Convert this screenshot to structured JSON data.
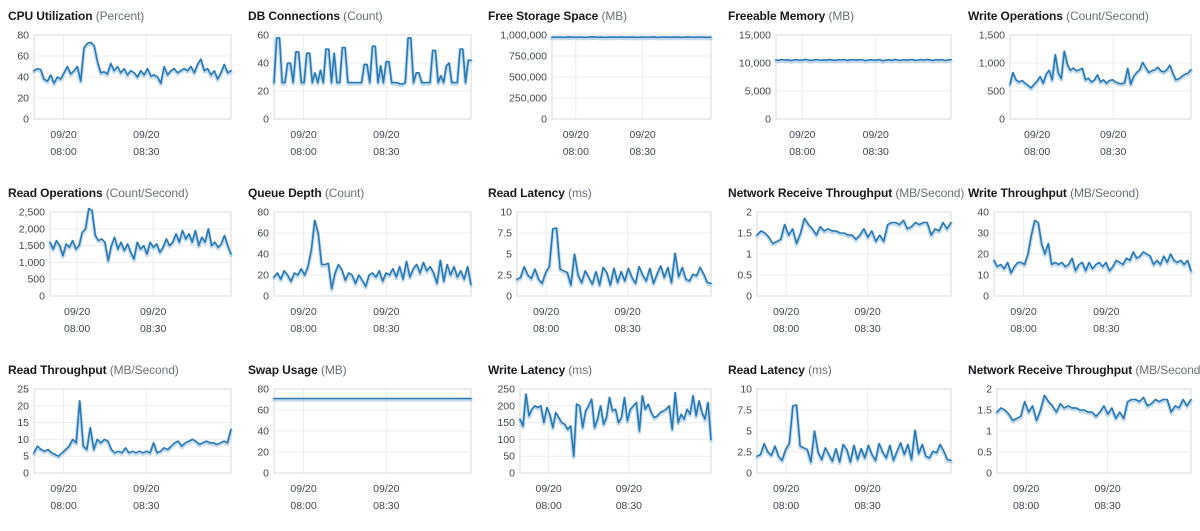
{
  "colors": {
    "line": "#2878b5",
    "line_glow": "#8fbcdf",
    "grid": "#ececec",
    "plot_border": "#d9d9d9",
    "title_text": "#16191f",
    "unit_text": "#687078",
    "tick_text": "#3f4750",
    "background": "#ffffff"
  },
  "x_axis": {
    "tick_labels": [
      {
        "date": "09/20",
        "time": "08:00"
      },
      {
        "date": "09/20",
        "time": "08:30"
      }
    ],
    "positions": [
      0.15,
      0.57
    ]
  },
  "chart_data": [
    {
      "type": "line",
      "title": "CPU Utilization",
      "unit": "(Percent)",
      "y_ticks": [
        "0",
        "20",
        "40",
        "60",
        "80"
      ],
      "ylim": [
        0,
        80
      ],
      "values": [
        46,
        48,
        47,
        38,
        36,
        42,
        34,
        40,
        38,
        44,
        50,
        43,
        46,
        50,
        36,
        68,
        72,
        73,
        70,
        55,
        44,
        45,
        43,
        53,
        46,
        50,
        44,
        48,
        42,
        46,
        44,
        40,
        46,
        42,
        48,
        41,
        42,
        40,
        34,
        50,
        42,
        46,
        48,
        44,
        46,
        48,
        46,
        50,
        44,
        52,
        57,
        46,
        48,
        42,
        46,
        38,
        44,
        52,
        44,
        46
      ]
    },
    {
      "type": "line",
      "title": "DB Connections",
      "unit": "(Count)",
      "y_ticks": [
        "0",
        "20",
        "40",
        "60"
      ],
      "ylim": [
        0,
        60
      ],
      "values": [
        26,
        58,
        58,
        26,
        26,
        40,
        40,
        26,
        48,
        48,
        26,
        26,
        47,
        47,
        26,
        33,
        26,
        35,
        26,
        50,
        50,
        26,
        47,
        26,
        26,
        51,
        51,
        26,
        26,
        26,
        26,
        26,
        26,
        39,
        39,
        26,
        52,
        52,
        26,
        38,
        26,
        41,
        41,
        26,
        26,
        26,
        25,
        25,
        26,
        58,
        58,
        26,
        33,
        33,
        26,
        26,
        26,
        26,
        49,
        49,
        26,
        31,
        26,
        38,
        40,
        26,
        26,
        26,
        50,
        50,
        26,
        42,
        42
      ]
    },
    {
      "type": "line",
      "title": "Free Storage Space",
      "unit": "(MB)",
      "y_ticks": [
        "0",
        "250,000",
        "500,000",
        "750,000",
        "1,000,000"
      ],
      "ylim": [
        0,
        1000000
      ],
      "values": [
        974000,
        976000,
        975000,
        973000,
        977000,
        975000,
        974000,
        976000,
        973000,
        975000,
        978000,
        974000,
        975000,
        973000,
        976000,
        975000,
        974000,
        977000,
        974000,
        976000,
        975000,
        973000,
        976000,
        974000,
        975000,
        977000,
        973000,
        975000,
        976000,
        974000,
        975000,
        976000,
        973000,
        977000,
        975000,
        974000,
        976000,
        975000,
        973000,
        975000
      ]
    },
    {
      "type": "line",
      "title": "Freeable Memory",
      "unit": "(MB)",
      "y_ticks": [
        "0",
        "5,000",
        "10,000",
        "15,000"
      ],
      "ylim": [
        0,
        15000
      ],
      "values": [
        10550,
        10480,
        10620,
        10510,
        10570,
        10430,
        10560,
        10610,
        10500,
        10560,
        10640,
        10520,
        10470,
        10580,
        10630,
        10490,
        10560,
        10520,
        10610,
        10550,
        10470,
        10590,
        10540,
        10620,
        10480,
        10550,
        10600,
        10510,
        10570,
        10620,
        10430,
        10540,
        10590,
        10500,
        10560,
        10610,
        10380,
        10530,
        10580,
        10490,
        10620,
        10550,
        10460,
        10600,
        10520,
        10570,
        10630,
        10480,
        10540,
        10600,
        10510,
        10650,
        10560,
        10470,
        10590,
        10530,
        10610,
        10450,
        10560,
        10620
      ]
    },
    {
      "type": "line",
      "title": "Write Operations",
      "unit": "(Count/Second)",
      "y_ticks": [
        "0",
        "500",
        "1,000",
        "1,500"
      ],
      "ylim": [
        0,
        1500
      ],
      "values": [
        620,
        830,
        700,
        660,
        690,
        640,
        600,
        555,
        620,
        680,
        760,
        640,
        800,
        870,
        700,
        1150,
        820,
        720,
        1210,
        980,
        870,
        910,
        860,
        880,
        905,
        700,
        730,
        660,
        700,
        790,
        660,
        700,
        640,
        690,
        700,
        660,
        640,
        630,
        645,
        905,
        620,
        760,
        830,
        880,
        1010,
        920,
        830,
        860,
        880,
        925,
        860,
        840,
        880,
        960,
        820,
        700,
        720,
        760,
        800,
        820,
        880
      ]
    },
    {
      "type": "line",
      "title": "Read Operations",
      "unit": "(Count/Second)",
      "y_ticks": [
        "0",
        "500",
        "1,000",
        "1,500",
        "2,000",
        "2,500"
      ],
      "ylim": [
        0,
        2500
      ],
      "values": [
        1600,
        1400,
        1650,
        1500,
        1200,
        1550,
        1450,
        1650,
        1400,
        1500,
        1900,
        2000,
        2600,
        2550,
        1800,
        1650,
        1700,
        1600,
        1050,
        1500,
        1750,
        1400,
        1600,
        1350,
        1550,
        1300,
        1100,
        1600,
        1400,
        1500,
        1250,
        1600,
        1450,
        1550,
        1300,
        1450,
        1700,
        1500,
        1600,
        1850,
        1600,
        1950,
        1700,
        1850,
        1600,
        1950,
        1500,
        1750,
        1600,
        2000,
        1500,
        1600,
        1450,
        1550,
        1800,
        1500,
        1250
      ]
    },
    {
      "type": "line",
      "title": "Queue Depth",
      "unit": "(Count)",
      "y_ticks": [
        "0",
        "20",
        "40",
        "60",
        "80"
      ],
      "ylim": [
        0,
        80
      ],
      "values": [
        18,
        22,
        16,
        24,
        20,
        14,
        22,
        20,
        26,
        20,
        28,
        44,
        72,
        60,
        30,
        30,
        31,
        7,
        22,
        30,
        25,
        15,
        22,
        20,
        12,
        20,
        15,
        9,
        20,
        22,
        18,
        24,
        14,
        22,
        20,
        26,
        18,
        28,
        16,
        33,
        18,
        26,
        30,
        22,
        32,
        24,
        28,
        22,
        12,
        34,
        14,
        30,
        20,
        28,
        18,
        24,
        16,
        28,
        11
      ]
    },
    {
      "type": "line",
      "title": "Read Latency",
      "unit": "(ms)",
      "y_ticks": [
        "0",
        "2.5",
        "5",
        "7.5",
        "10"
      ],
      "ylim": [
        0,
        10
      ],
      "values": [
        2.0,
        2.2,
        3.5,
        2.5,
        2.1,
        3.2,
        2.0,
        1.5,
        2.8,
        3.5,
        8.0,
        8.1,
        3.2,
        3.0,
        2.8,
        1.3,
        5.0,
        2.5,
        1.6,
        3.0,
        2.2,
        1.4,
        2.9,
        1.3,
        3.4,
        2.8,
        1.3,
        3.3,
        1.6,
        2.9,
        1.8,
        3.3,
        2.2,
        1.5,
        3.5,
        2.5,
        1.8,
        3.3,
        1.5,
        2.6,
        3.6,
        2.2,
        3.4,
        1.6,
        5.1,
        2.3,
        3.4,
        2.0,
        1.8,
        2.6,
        2.4,
        3.4,
        2.6,
        1.6,
        1.5
      ]
    },
    {
      "type": "line",
      "title": "Network Receive Throughput",
      "unit": "(MB/Second)",
      "y_ticks": [
        "0",
        "0.5",
        "1",
        "1.5",
        "2"
      ],
      "ylim": [
        0,
        2
      ],
      "values": [
        1.45,
        1.55,
        1.5,
        1.4,
        1.25,
        1.3,
        1.35,
        1.7,
        1.45,
        1.6,
        1.25,
        1.5,
        1.85,
        1.7,
        1.6,
        1.45,
        1.65,
        1.55,
        1.6,
        1.55,
        1.55,
        1.5,
        1.5,
        1.45,
        1.45,
        1.35,
        1.45,
        1.6,
        1.4,
        1.55,
        1.3,
        1.45,
        1.3,
        1.7,
        1.75,
        1.75,
        1.7,
        1.8,
        1.6,
        1.65,
        1.75,
        1.7,
        1.75,
        1.75,
        1.45,
        1.6,
        1.55,
        1.75,
        1.6,
        1.75
      ]
    },
    {
      "type": "line",
      "title": "Write Throughput",
      "unit": "(MB/Second)",
      "y_ticks": [
        "0",
        "10",
        "20",
        "30",
        "40"
      ],
      "ylim": [
        0,
        40
      ],
      "values": [
        17,
        14,
        15,
        13,
        16,
        11,
        14,
        16,
        16,
        15,
        20,
        29,
        36,
        35,
        25,
        20,
        25,
        15,
        16,
        15,
        16,
        14,
        15,
        18,
        12,
        15,
        16,
        12,
        16,
        13,
        15,
        16,
        14,
        16,
        12,
        14,
        17,
        16,
        15,
        18,
        17,
        21,
        18,
        19,
        21,
        20,
        19,
        15,
        17,
        15,
        19,
        16,
        20,
        17,
        16,
        17,
        15,
        17,
        12
      ]
    },
    {
      "type": "line",
      "title": "Read Throughput",
      "unit": "(MB/Second)",
      "y_ticks": [
        "0",
        "5",
        "10",
        "15",
        "20",
        "25"
      ],
      "ylim": [
        0,
        25
      ],
      "values": [
        6,
        8,
        7,
        6.5,
        7,
        6,
        5.5,
        5,
        6,
        7,
        8,
        10,
        9,
        21.5,
        8,
        7,
        13.5,
        7,
        10,
        9,
        10,
        9.5,
        7,
        6,
        6.5,
        6,
        7.5,
        6,
        6.5,
        6,
        6.5,
        6,
        6.5,
        6,
        9,
        6,
        6.5,
        7.5,
        7,
        8,
        9,
        9.5,
        8,
        9,
        9.5,
        10,
        9.5,
        8.5,
        9,
        9.5,
        9,
        9,
        8.5,
        9,
        9.5,
        9,
        13
      ]
    },
    {
      "type": "line",
      "title": "Swap Usage",
      "unit": "(MB)",
      "y_ticks": [
        "0",
        "20",
        "40",
        "60",
        "80"
      ],
      "ylim": [
        0,
        80
      ],
      "values": [
        71,
        71,
        71,
        71,
        71,
        71,
        71,
        71,
        71,
        71,
        71,
        71,
        71,
        71,
        71,
        71,
        71,
        71,
        71,
        71,
        71,
        71,
        71,
        71,
        71,
        71,
        71,
        71,
        71,
        71,
        71,
        71,
        71,
        71,
        71,
        71,
        71,
        71,
        71,
        71
      ]
    },
    {
      "type": "line",
      "title": "Write Latency",
      "unit": "(ms)",
      "y_ticks": [
        "0",
        "50",
        "100",
        "150",
        "200",
        "250"
      ],
      "ylim": [
        0,
        250
      ],
      "values": [
        160,
        140,
        235,
        170,
        190,
        200,
        195,
        200,
        150,
        195,
        175,
        135,
        180,
        165,
        150,
        145,
        130,
        140,
        50,
        205,
        200,
        135,
        185,
        200,
        220,
        135,
        160,
        200,
        145,
        165,
        225,
        185,
        190,
        150,
        165,
        225,
        155,
        190,
        200,
        210,
        125,
        230,
        190,
        205,
        180,
        165,
        170,
        180,
        185,
        190,
        200,
        130,
        240,
        150,
        175,
        160,
        190,
        175,
        230,
        170,
        215,
        180,
        160,
        210,
        100
      ]
    },
    {
      "type": "line",
      "title": "Read Latency",
      "unit": "(ms)",
      "y_ticks": [
        "0",
        "2.5",
        "5",
        "7.5",
        "10"
      ],
      "ylim": [
        0,
        10
      ],
      "values": [
        2.0,
        2.2,
        3.5,
        2.5,
        2.1,
        3.2,
        2.0,
        1.5,
        2.8,
        3.5,
        8.0,
        8.1,
        3.2,
        3.0,
        2.8,
        1.3,
        5.0,
        2.5,
        1.6,
        3.0,
        2.2,
        1.4,
        2.9,
        1.3,
        3.4,
        2.8,
        1.3,
        3.3,
        1.6,
        2.9,
        1.8,
        3.3,
        2.2,
        1.5,
        3.5,
        2.5,
        1.8,
        3.3,
        1.5,
        2.6,
        3.6,
        2.2,
        3.4,
        1.6,
        5.1,
        2.3,
        3.4,
        2.0,
        1.8,
        2.6,
        2.4,
        3.4,
        2.6,
        1.6,
        1.5
      ]
    },
    {
      "type": "line",
      "title": "Network Receive Throughput",
      "unit": "(MB/Second)",
      "y_ticks": [
        "0",
        "0.5",
        "1",
        "1.5",
        "2"
      ],
      "ylim": [
        0,
        2
      ],
      "values": [
        1.45,
        1.55,
        1.5,
        1.4,
        1.25,
        1.3,
        1.35,
        1.7,
        1.45,
        1.6,
        1.25,
        1.5,
        1.85,
        1.7,
        1.6,
        1.45,
        1.65,
        1.55,
        1.6,
        1.55,
        1.55,
        1.5,
        1.5,
        1.45,
        1.45,
        1.35,
        1.45,
        1.6,
        1.4,
        1.55,
        1.3,
        1.45,
        1.3,
        1.7,
        1.75,
        1.75,
        1.7,
        1.8,
        1.6,
        1.65,
        1.75,
        1.7,
        1.75,
        1.75,
        1.45,
        1.6,
        1.55,
        1.75,
        1.6,
        1.75
      ]
    }
  ]
}
